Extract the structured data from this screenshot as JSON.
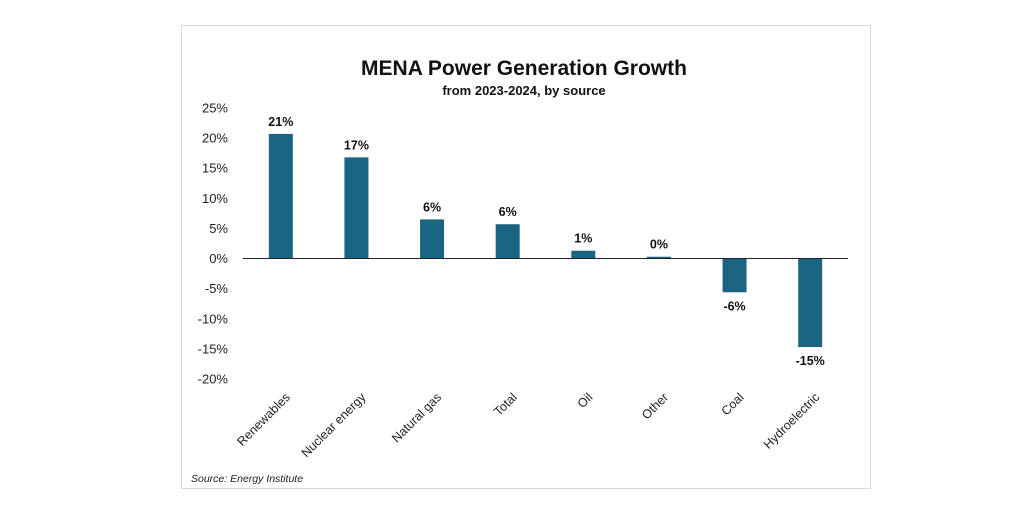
{
  "chart_data": {
    "type": "bar",
    "title": "MENA Power Generation Growth",
    "subtitle": "from 2023-2024, by source",
    "categories": [
      "Renewables",
      "Nuclear energy",
      "Natural gas",
      "Total",
      "Oil",
      "Other",
      "Coal",
      "Hydroelectric"
    ],
    "values": [
      21,
      17,
      6,
      6,
      1,
      0,
      -6,
      -15
    ],
    "value_labels": [
      "21%",
      "17%",
      "6%",
      "6%",
      "1%",
      "0%",
      "-6%",
      "-15%"
    ],
    "plotted_values": [
      20.7,
      16.8,
      6.5,
      5.7,
      1.3,
      0.3,
      -5.6,
      -14.7
    ],
    "ylim": [
      -20,
      25
    ],
    "y_ticks": [
      25,
      20,
      15,
      10,
      5,
      0,
      -5,
      -10,
      -15,
      -20
    ],
    "y_tick_labels": [
      "25%",
      "20%",
      "15%",
      "10%",
      "5%",
      "0%",
      "-5%",
      "-10%",
      "-15%",
      "-20%"
    ],
    "xlabel": "",
    "ylabel": "",
    "grid": false,
    "legend": "none",
    "bar_color": "#1b6482",
    "source": "Source: Energy Institute"
  }
}
